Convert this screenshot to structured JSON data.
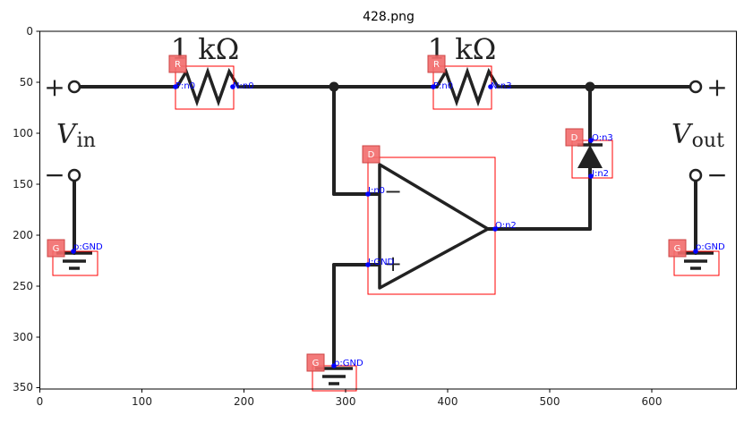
{
  "figure": {
    "title": "428.png",
    "x_ticks": [
      "0",
      "100",
      "200",
      "300",
      "400",
      "500",
      "600"
    ],
    "y_ticks": [
      "0",
      "50",
      "100",
      "150",
      "200",
      "250",
      "300",
      "350"
    ]
  },
  "circuit": {
    "resistor_1_value": "1 kΩ",
    "resistor_2_value": "1 kΩ",
    "vin_symbol": "V",
    "vin_sub": "in",
    "vout_symbol": "V",
    "vout_sub": "out",
    "plus_left": "+",
    "minus_left": "−",
    "plus_right": "+",
    "minus_right": "−",
    "opamp_minus": "−",
    "opamp_plus": "+"
  },
  "annotations": {
    "badges": [
      "R",
      "R",
      "D",
      "D",
      "G",
      "G",
      "G"
    ],
    "labels": {
      "r1_p": "P:n0",
      "r1_n": "N:n0",
      "r2_p": "P:n0",
      "r2_n": "N:n3",
      "opamp_in_minus": "I:n0",
      "opamp_in_plus": "I:GND",
      "opamp_out": "O:n2",
      "diode_o": "O:n3",
      "diode_i": "I:n2",
      "gnd_left": "p:GND",
      "gnd_right": "p:GND",
      "gnd_bottom": "p:GND"
    },
    "colors": {
      "box": "#ff0000",
      "badge": "#f26b6b",
      "pin": "#0000ff",
      "wire": "#222222"
    }
  }
}
